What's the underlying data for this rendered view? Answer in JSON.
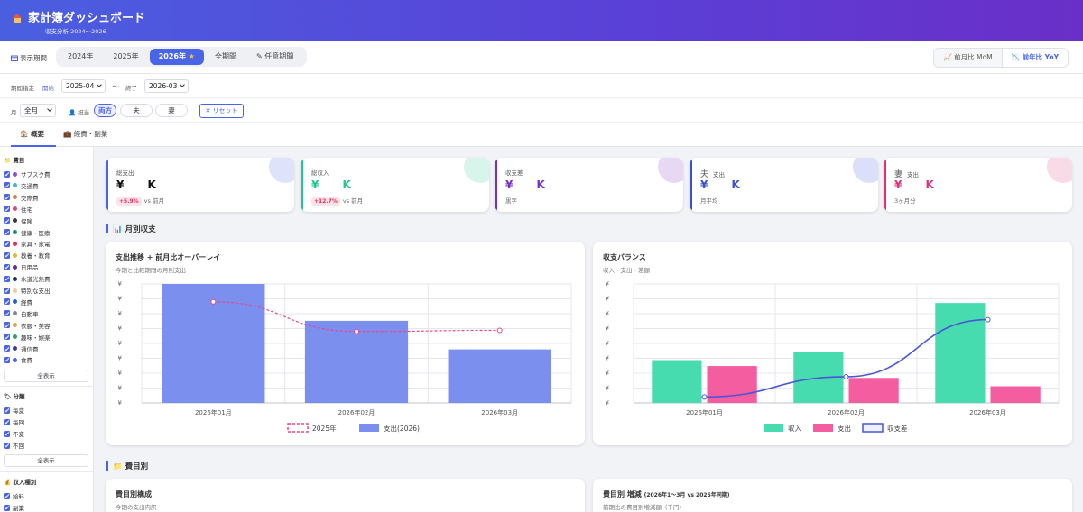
{
  "header": {
    "title": "家計簿ダッシュボード",
    "subtitle": "収支分析 2024〜2026"
  },
  "period_bar": {
    "label": "表示期間",
    "years": [
      "2024年",
      "2025年",
      "2026年"
    ],
    "all": "全期間",
    "custom": "任意期間",
    "compare": {
      "mom": "前月比 MoM",
      "yoy": "前年比 YoY",
      "active": "yoy"
    }
  },
  "filters": {
    "range_label": "期間指定",
    "start_label": "開始",
    "start_value": "2025-04",
    "tilde": "〜",
    "end_label": "終了",
    "end_value": "2026-03",
    "month_label": "月",
    "month_value": "全月",
    "person_label": "担当",
    "persons": [
      "両方",
      "夫",
      "妻"
    ],
    "reset": "リセット"
  },
  "tabs": {
    "overview": "概要",
    "expense": "経費・副業"
  },
  "sidebar": {
    "categories_head": "費目",
    "categories": [
      {
        "label": "サブスク費",
        "color": "#8a4fd6"
      },
      {
        "label": "交通費",
        "color": "#3fb8c8"
      },
      {
        "label": "交際費",
        "color": "#e07a4a"
      },
      {
        "label": "住宅",
        "color": "#e0457a"
      },
      {
        "label": "保険",
        "color": "#3a3a3a"
      },
      {
        "label": "健康・医療",
        "color": "#1f8a7a"
      },
      {
        "label": "家具・家電",
        "color": "#e0315a"
      },
      {
        "label": "教養・教育",
        "color": "#f0b03a"
      },
      {
        "label": "日用品",
        "color": "#5a2fa0"
      },
      {
        "label": "水道光熱費",
        "color": "#1a2f70"
      },
      {
        "label": "特別な支出",
        "color": "#f2c8a0"
      },
      {
        "label": "経費",
        "color": "#2a5fd0"
      },
      {
        "label": "自動車",
        "color": "#7a8a9a"
      },
      {
        "label": "衣服・美容",
        "color": "#e0a040"
      },
      {
        "label": "趣味・娯楽",
        "color": "#2aa070"
      },
      {
        "label": "通信費",
        "color": "#3a3aa0"
      },
      {
        "label": "食費",
        "color": "#4a64e8"
      }
    ],
    "show_all": "全表示",
    "class_head": "分類",
    "classes": [
      "毎変",
      "毎回",
      "不変",
      "不回"
    ],
    "income_head": "収入種別",
    "incomes": [
      "給料",
      "副業"
    ]
  },
  "kpis": [
    {
      "label": "総支出",
      "value": "¥ K",
      "badge": "+5.9%",
      "sub": "vs 前月",
      "color": "#4a64e8"
    },
    {
      "label": "総収入",
      "value": "¥ K",
      "badge": "+12.7%",
      "sub": "vs 前月",
      "color": "#22c58e"
    },
    {
      "label": "収支差",
      "value": "¥ K",
      "badge": "",
      "sub": "黒字",
      "color": "#7a2fc0"
    },
    {
      "label": "夫",
      "label2": "支出",
      "value": "¥ K",
      "badge": "",
      "sub": "月平均",
      "color": "#3a4fd0"
    },
    {
      "label": "妻",
      "label2": "支出",
      "value": "¥ K",
      "badge": "",
      "sub": "3ヶ月分",
      "color": "#e0317a"
    }
  ],
  "sections": {
    "monthly": "月別収支",
    "by_category": "費目別"
  },
  "charts": {
    "trend": {
      "title": "支出推移 + 前月比オーバーレイ",
      "subtitle": "今期と比較期間の月別支出",
      "yaxis_symbol": "¥"
    },
    "balance": {
      "title": "収支バランス",
      "subtitle": "収入・支出・差額",
      "yaxis_symbol": "¥"
    },
    "composition": {
      "title": "費目別構成",
      "subtitle": "今期の支出内訳"
    },
    "change": {
      "title": "費目別 増減",
      "title_small": "(2026年1〜3月 vs 2025年同期)",
      "subtitle": "前期比の費目別増減額（千円）"
    }
  },
  "chart_data": [
    {
      "type": "bar",
      "title": "支出推移 + 前月比オーバーレイ",
      "categories": [
        "2026年01月",
        "2026年02月",
        "2026年03月"
      ],
      "series": [
        {
          "name": "支出(2026)",
          "type": "bar",
          "values": [
            100,
            69,
            45
          ]
        },
        {
          "name": "2025年",
          "type": "line",
          "values": [
            85,
            60,
            61
          ]
        }
      ],
      "legend": "bottom",
      "grid": true,
      "ylim": [
        0,
        100
      ],
      "ylabel": ""
    },
    {
      "type": "bar",
      "title": "収支バランス",
      "categories": [
        "2026年01月",
        "2026年02月",
        "2026年03月"
      ],
      "series": [
        {
          "name": "収入",
          "type": "bar",
          "values": [
            36,
            43,
            84
          ]
        },
        {
          "name": "支出",
          "type": "bar",
          "values": [
            31,
            21,
            14
          ]
        },
        {
          "name": "収支差",
          "type": "line",
          "values": [
            5,
            22,
            70
          ]
        }
      ],
      "legend": "bottom",
      "grid": true,
      "ylim": [
        0,
        100
      ],
      "ylabel": ""
    }
  ],
  "colors": {
    "accent": "#4a64e8",
    "income": "#46dcaf",
    "expense": "#f45d9f",
    "bar_expense": "#7b8fef",
    "line_2025": "#e8458a",
    "line_diff": "#4a56d6"
  }
}
